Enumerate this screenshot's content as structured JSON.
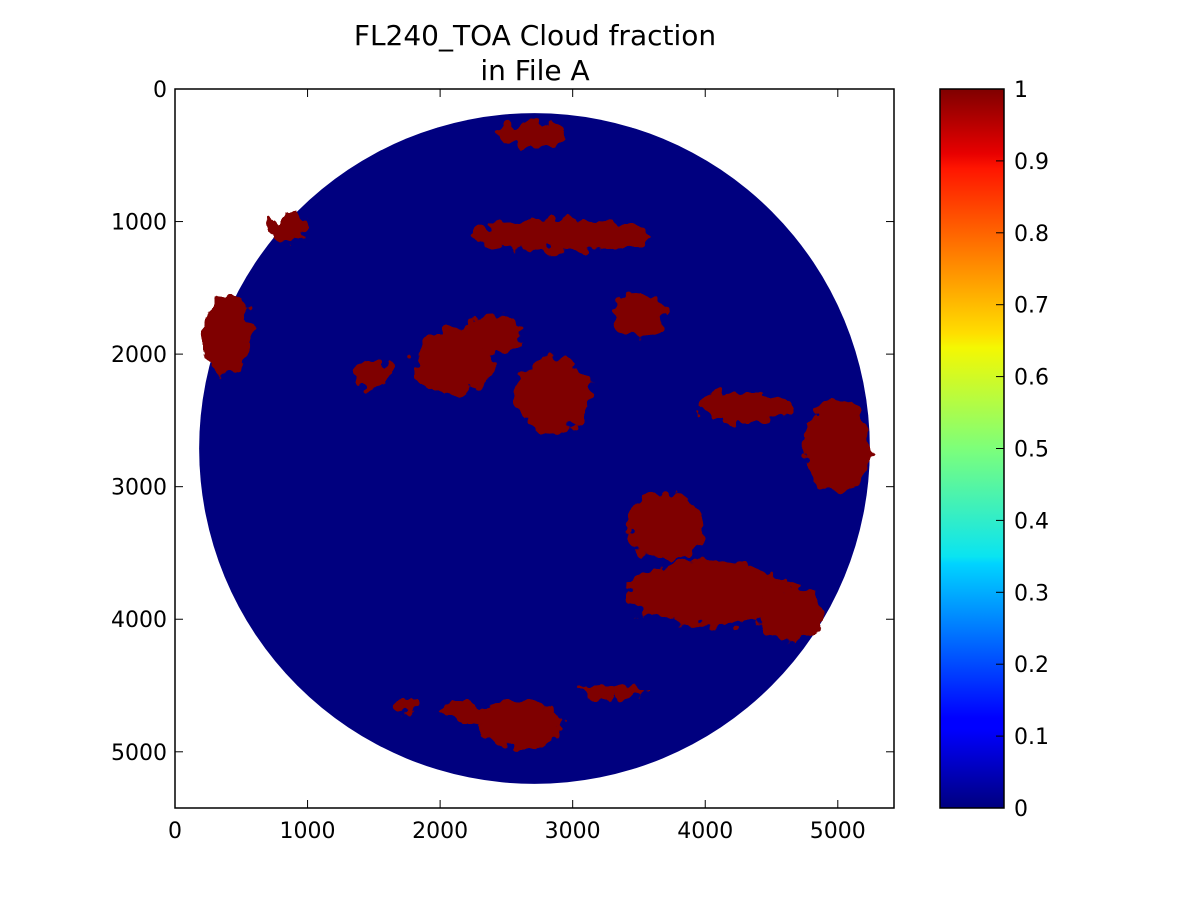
{
  "chart_data": {
    "type": "heatmap",
    "title": "FL240_TOA Cloud fraction",
    "subtitle": "in File A",
    "xlim": [
      0,
      5424
    ],
    "ylim": [
      5424,
      0
    ],
    "xticks": [
      0,
      1000,
      2000,
      3000,
      4000,
      5000
    ],
    "yticks": [
      0,
      1000,
      2000,
      3000,
      4000,
      5000
    ],
    "y_axis_inverted": true,
    "disk": {
      "center": [
        2712,
        2712
      ],
      "radius": 2530
    },
    "background_value": 0,
    "colormap": "jet",
    "colorbar": {
      "range": [
        0,
        1
      ],
      "ticks": [
        0,
        0.1,
        0.2,
        0.3,
        0.4,
        0.5,
        0.6,
        0.7,
        0.8,
        0.9,
        1
      ],
      "tick_labels": [
        "0",
        "0.1",
        "0.2",
        "0.3",
        "0.4",
        "0.5",
        "0.6",
        "0.7",
        "0.8",
        "0.9",
        "1"
      ]
    },
    "cloud_regions": [
      {
        "cx": 2900,
        "cy": 1100,
        "rx": 700,
        "ry": 120,
        "value": 1
      },
      {
        "cx": 2700,
        "cy": 350,
        "rx": 250,
        "ry": 100,
        "value": 1
      },
      {
        "cx": 2100,
        "cy": 2050,
        "rx": 300,
        "ry": 250,
        "value": 1
      },
      {
        "cx": 2850,
        "cy": 2300,
        "rx": 280,
        "ry": 280,
        "value": 1
      },
      {
        "cx": 2400,
        "cy": 1850,
        "rx": 200,
        "ry": 150,
        "value": 1
      },
      {
        "cx": 3500,
        "cy": 1700,
        "rx": 200,
        "ry": 150,
        "value": 1
      },
      {
        "cx": 4300,
        "cy": 2400,
        "rx": 350,
        "ry": 120,
        "value": 1
      },
      {
        "cx": 5000,
        "cy": 2700,
        "rx": 250,
        "ry": 350,
        "value": 1
      },
      {
        "cx": 4000,
        "cy": 3800,
        "rx": 600,
        "ry": 250,
        "value": 1
      },
      {
        "cx": 3700,
        "cy": 3300,
        "rx": 300,
        "ry": 250,
        "value": 1
      },
      {
        "cx": 4650,
        "cy": 3950,
        "rx": 250,
        "ry": 200,
        "value": 1
      },
      {
        "cx": 400,
        "cy": 1850,
        "rx": 180,
        "ry": 300,
        "value": 1
      },
      {
        "cx": 850,
        "cy": 1050,
        "rx": 130,
        "ry": 120,
        "value": 1
      },
      {
        "cx": 1500,
        "cy": 2150,
        "rx": 150,
        "ry": 100,
        "value": 1
      },
      {
        "cx": 2600,
        "cy": 4800,
        "rx": 300,
        "ry": 180,
        "value": 1
      },
      {
        "cx": 2200,
        "cy": 4700,
        "rx": 200,
        "ry": 80,
        "value": 1
      },
      {
        "cx": 1750,
        "cy": 4650,
        "rx": 80,
        "ry": 60,
        "value": 1
      },
      {
        "cx": 3300,
        "cy": 4550,
        "rx": 250,
        "ry": 60,
        "value": 1
      }
    ]
  },
  "colors": {
    "low": "#00007f",
    "high": "#7f0000"
  }
}
